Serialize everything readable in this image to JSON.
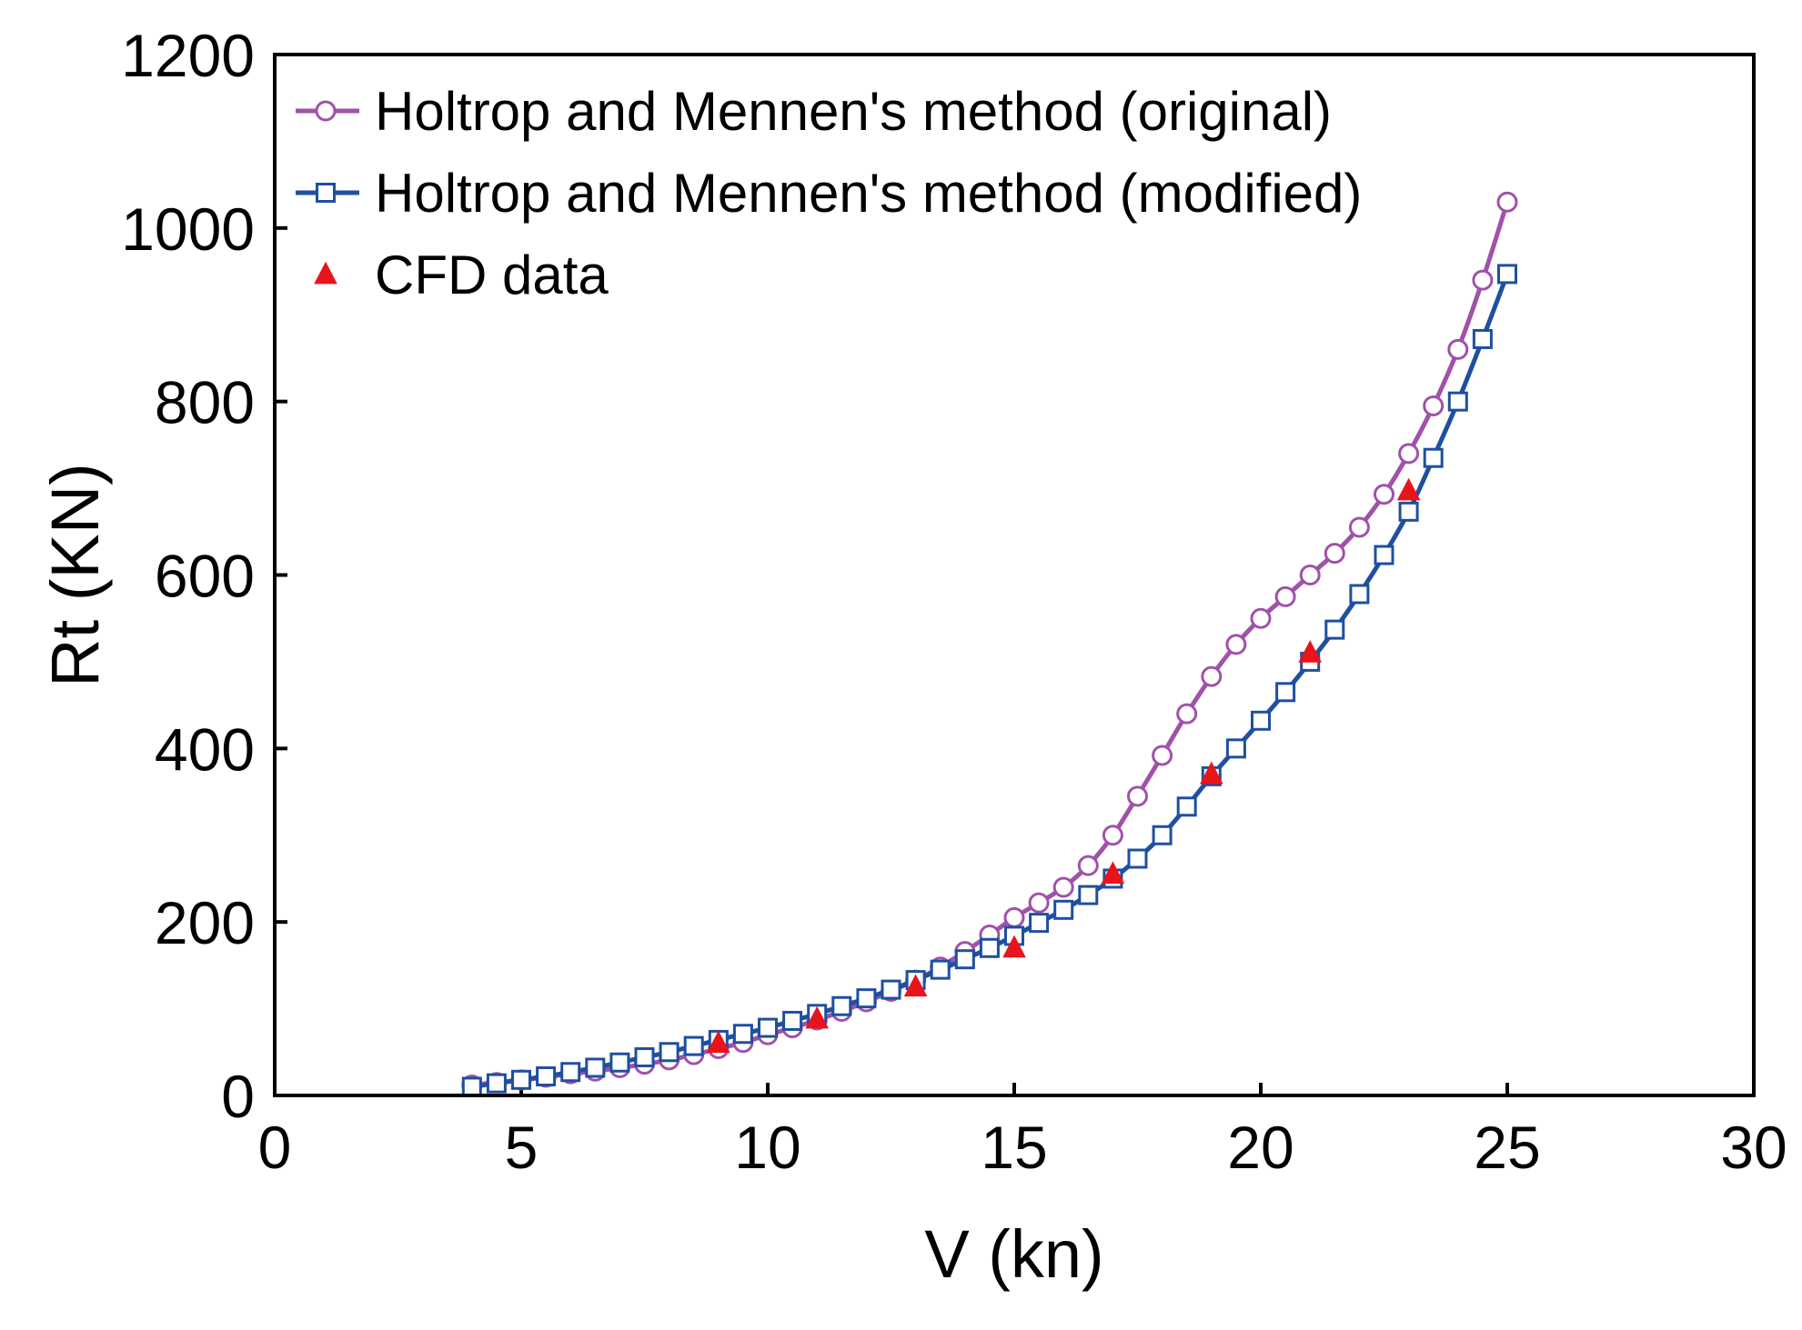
{
  "chart_data": {
    "type": "line",
    "title": "",
    "xlabel": "V (kn)",
    "ylabel": "Rt (KN)",
    "xlim": [
      0,
      30
    ],
    "ylim": [
      0,
      1200
    ],
    "xticks": [
      0,
      5,
      10,
      15,
      20,
      25,
      30
    ],
    "yticks": [
      0,
      200,
      400,
      600,
      800,
      1000,
      1200
    ],
    "legend_position": "top-left",
    "series": [
      {
        "name": "Holtrop and Mennen's method (original)",
        "color": "#a052a8",
        "marker": "circle",
        "line": true,
        "x": [
          4,
          4.5,
          5,
          5.5,
          6,
          6.5,
          7,
          7.5,
          8,
          8.5,
          9,
          9.5,
          10,
          10.5,
          11,
          11.5,
          12,
          12.5,
          13,
          13.5,
          14,
          14.5,
          15,
          15.5,
          16,
          16.5,
          17,
          17.5,
          18,
          18.5,
          19,
          19.5,
          20,
          20.5,
          21,
          21.5,
          22,
          22.5,
          23,
          23.5,
          24,
          24.5,
          25
        ],
        "y": [
          12,
          15,
          18,
          21,
          25,
          28,
          32,
          36,
          41,
          47,
          54,
          61,
          70,
          78,
          87,
          97,
          108,
          120,
          133,
          148,
          166,
          185,
          205,
          222,
          240,
          265,
          300,
          345,
          392,
          440,
          483,
          520,
          550,
          575,
          600,
          625,
          655,
          693,
          740,
          795,
          860,
          940,
          1030
        ]
      },
      {
        "name": "Holtrop and Mennen's method (modified)",
        "color": "#1f4fa0",
        "marker": "square",
        "line": true,
        "x": [
          4,
          4.5,
          5,
          5.5,
          6,
          6.5,
          7,
          7.5,
          8,
          8.5,
          9,
          9.5,
          10,
          10.5,
          11,
          11.5,
          12,
          12.5,
          13,
          13.5,
          14,
          14.5,
          15,
          15.5,
          16,
          16.5,
          17,
          17.5,
          18,
          18.5,
          19,
          19.5,
          20,
          20.5,
          21,
          21.5,
          22,
          22.5,
          23,
          23.5,
          24,
          24.5,
          25
        ],
        "y": [
          10,
          14,
          18,
          22,
          27,
          32,
          38,
          44,
          50,
          57,
          64,
          71,
          78,
          86,
          94,
          103,
          112,
          122,
          133,
          145,
          157,
          170,
          184,
          199,
          214,
          231,
          250,
          273,
          300,
          333,
          368,
          400,
          432,
          465,
          500,
          537,
          578,
          623,
          673,
          735,
          800,
          872,
          947
        ]
      },
      {
        "name": "CFD data",
        "color": "#e8141c",
        "marker": "triangle",
        "line": false,
        "x": [
          9,
          11,
          13,
          15,
          17,
          19,
          21,
          23
        ],
        "y": [
          60,
          88,
          125,
          170,
          255,
          370,
          510,
          697
        ]
      }
    ]
  }
}
